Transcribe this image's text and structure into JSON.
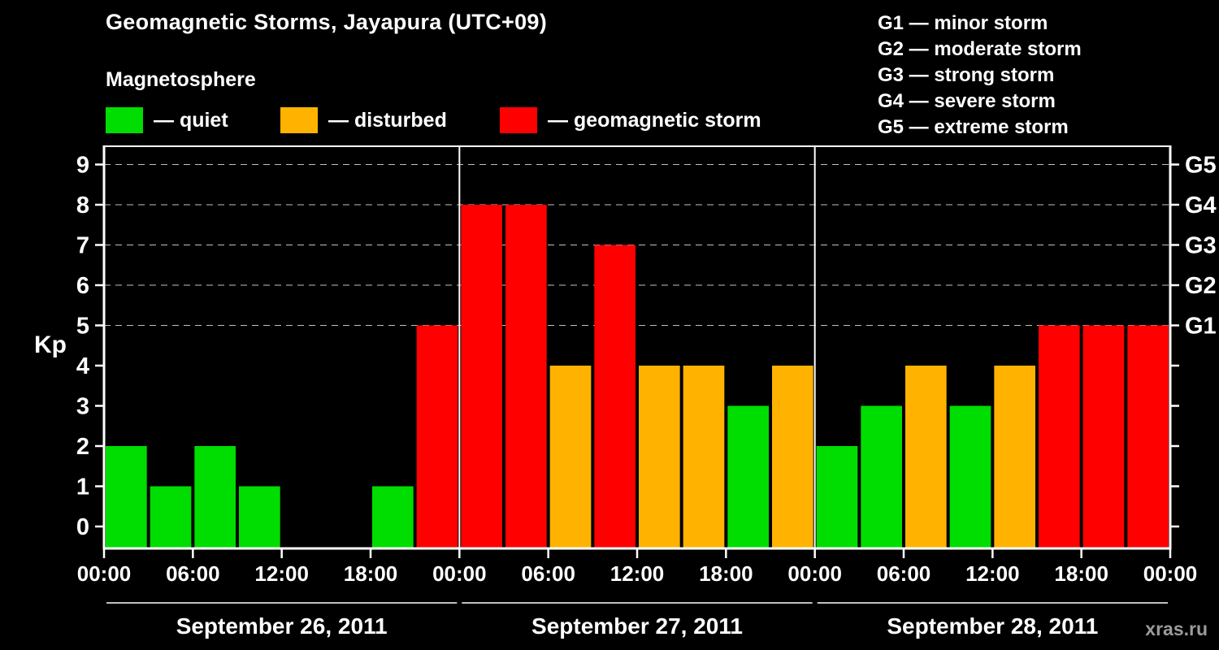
{
  "g_scale": {
    "items": [
      "G1 — minor storm",
      "G2 — moderate storm",
      "G3 — strong storm",
      "G4 — severe storm",
      "G5 — extreme storm"
    ]
  },
  "legend": {
    "title": "Magnetosphere",
    "items": [
      {
        "color_key": "quiet",
        "label": "— quiet"
      },
      {
        "color_key": "disturbed",
        "label": "— disturbed"
      },
      {
        "color_key": "storm",
        "label": "— geomagnetic storm"
      }
    ]
  },
  "watermark": "xras.ru",
  "chart_data": {
    "type": "bar",
    "title": "Geomagnetic Storms, Jayapura (UTC+09)",
    "ylabel": "Kp",
    "ylim": [
      0,
      9
    ],
    "y_ticks": [
      0,
      1,
      2,
      3,
      4,
      5,
      6,
      7,
      8,
      9
    ],
    "x_tick_labels": [
      "00:00",
      "06:00",
      "12:00",
      "18:00"
    ],
    "x_final_label": "00:00",
    "right_axis_labels": [
      {
        "kp": 5,
        "label": "G1"
      },
      {
        "kp": 6,
        "label": "G2"
      },
      {
        "kp": 7,
        "label": "G3"
      },
      {
        "kp": 8,
        "label": "G4"
      },
      {
        "kp": 9,
        "label": "G5"
      }
    ],
    "grid_kp_levels": [
      5,
      6,
      7,
      8,
      9
    ],
    "colors": {
      "quiet": "#00dd00",
      "disturbed": "#ffb300",
      "storm": "#ff0000"
    },
    "color_rule": {
      "disturbed_min": 4,
      "storm_min": 5
    },
    "bar_interval_hours": 3,
    "days": [
      {
        "date": "September 26, 2011",
        "values": [
          2,
          1,
          2,
          1,
          0,
          0,
          1,
          5
        ]
      },
      {
        "date": "September 27, 2011",
        "values": [
          8,
          8,
          4,
          7,
          4,
          4,
          3,
          4
        ]
      },
      {
        "date": "September 28, 2011",
        "values": [
          2,
          3,
          4,
          3,
          4,
          5,
          5,
          5
        ]
      }
    ]
  }
}
